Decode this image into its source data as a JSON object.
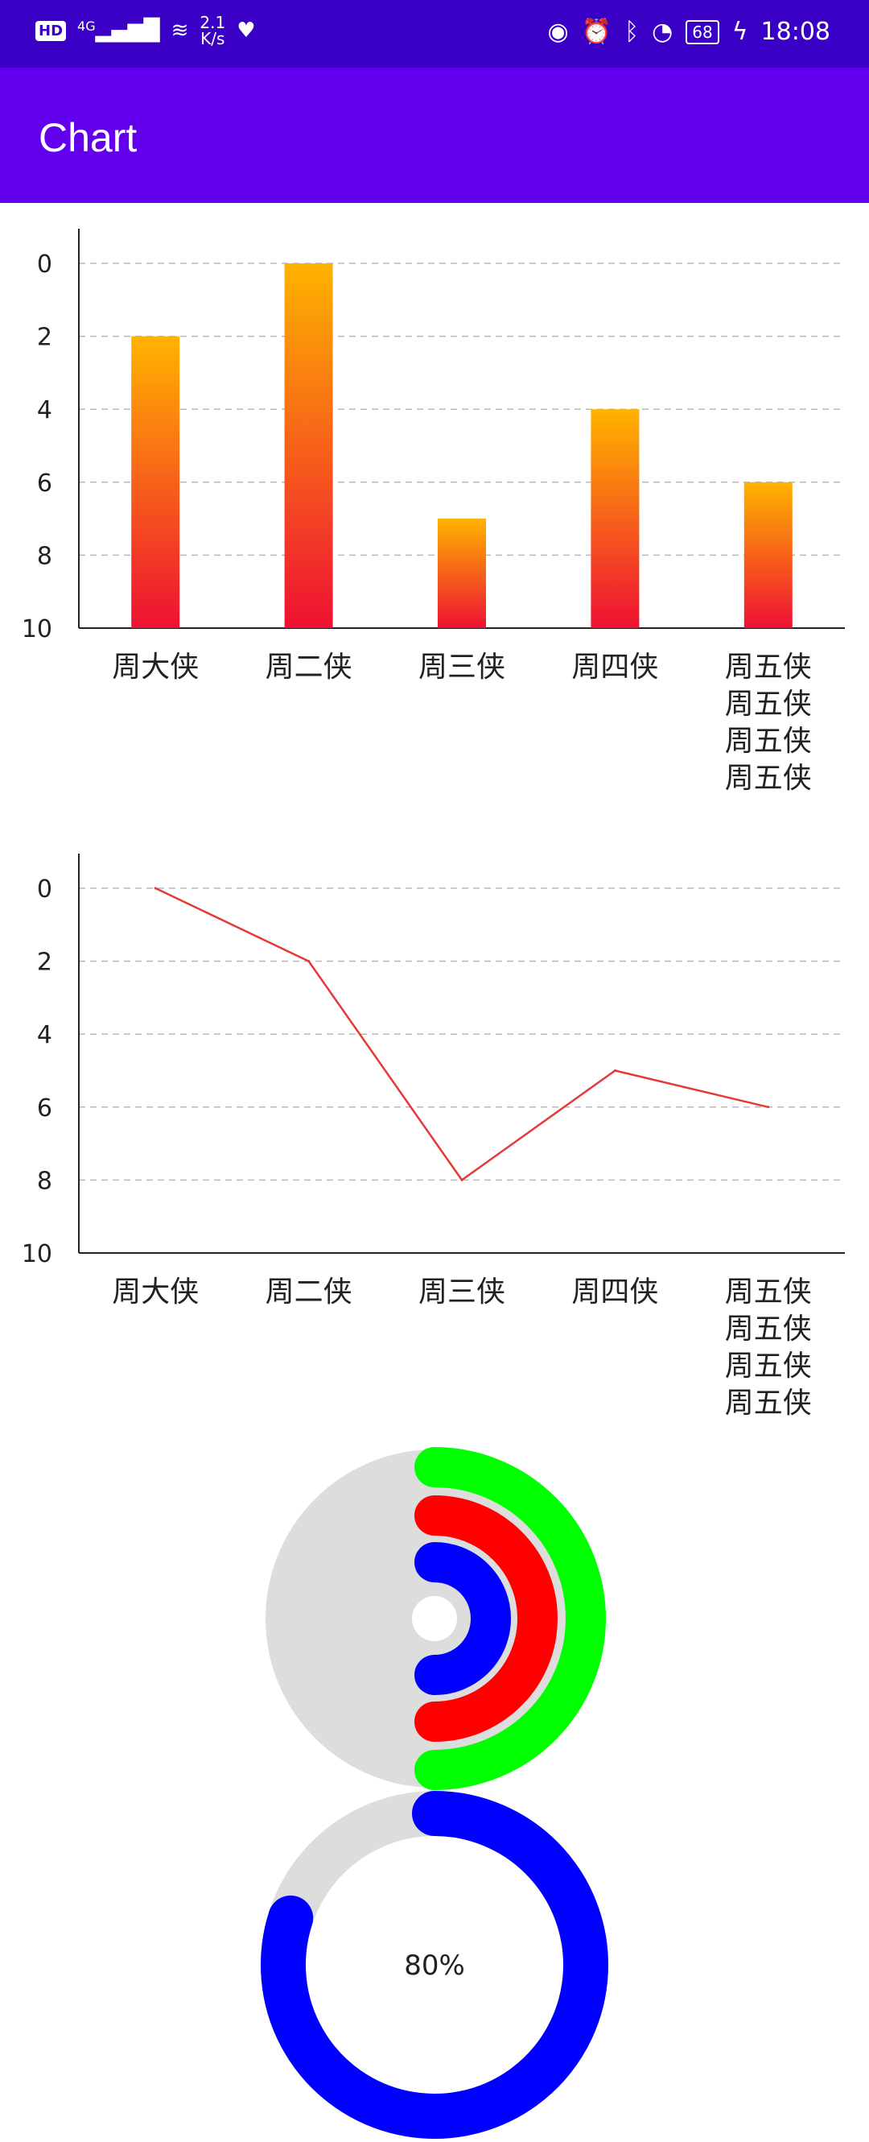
{
  "status_bar": {
    "network": "HD",
    "signal": "4G",
    "speed_value": "2.1",
    "speed_unit": "K/s",
    "battery": "68",
    "time": "18:08"
  },
  "app_bar": {
    "title": "Chart"
  },
  "chart_data": [
    {
      "type": "bar",
      "categories": [
        "周大侠",
        "周二侠",
        "周三侠",
        "周四侠",
        "周五侠\n周五侠\n周五侠\n周五侠"
      ],
      "values": [
        2,
        0,
        7,
        4,
        6
      ],
      "ylim": [
        0,
        10
      ],
      "y_ticks": [
        0,
        2,
        4,
        6,
        8,
        10
      ],
      "y_inverted": true,
      "gradient": [
        "#ffb300",
        "#ee1133"
      ],
      "grid": true
    },
    {
      "type": "line",
      "categories": [
        "周大侠",
        "周二侠",
        "周三侠",
        "周四侠",
        "周五侠\n周五侠\n周五侠\n周五侠"
      ],
      "values": [
        0,
        2,
        8,
        5,
        6
      ],
      "ylim": [
        0,
        10
      ],
      "y_ticks": [
        0,
        2,
        4,
        6,
        8,
        10
      ],
      "y_inverted": true,
      "line_color": "#e53935",
      "grid": true
    },
    {
      "type": "pie",
      "style": "concentric-half-rings",
      "background_color": "#dddddd",
      "rings": [
        {
          "color": "#00ff00",
          "value": 0.5
        },
        {
          "color": "#ff0000",
          "value": 0.5
        },
        {
          "color": "#0000ff",
          "value": 0.5
        }
      ]
    },
    {
      "type": "pie",
      "style": "progress-ring",
      "value": 0.8,
      "label": "80%",
      "color": "#0000ff",
      "track_color": "#dddddd"
    }
  ]
}
